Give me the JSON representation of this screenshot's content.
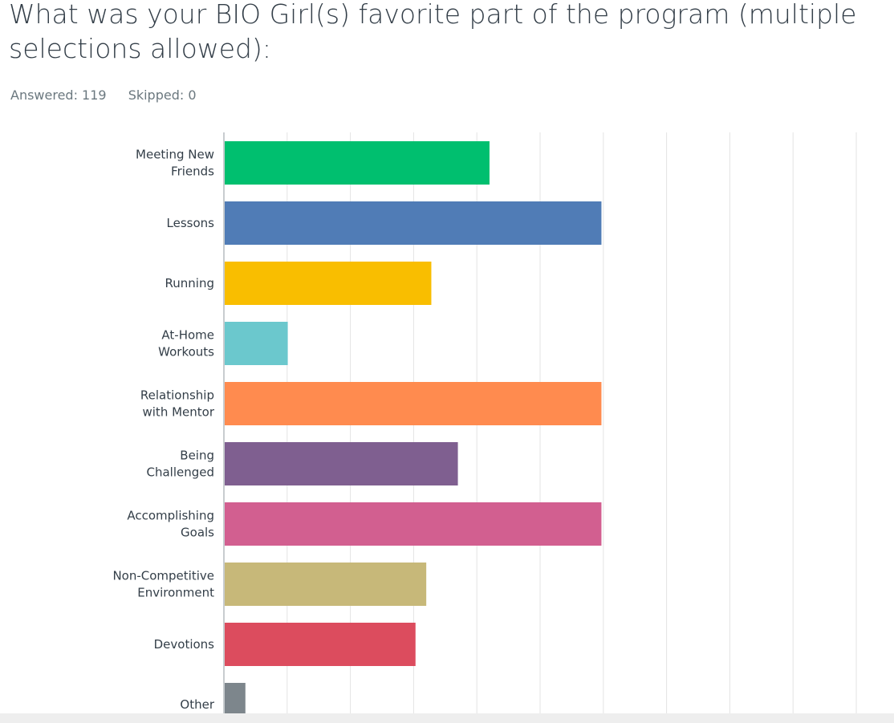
{
  "question": {
    "title": "What was your BIO Girl(s) favorite part of the program (multiple selections allowed):",
    "answered": "Answered: 119",
    "skipped": "Skipped: 0"
  },
  "chart_data": {
    "type": "bar",
    "orientation": "horizontal",
    "categories": [
      [
        "Meeting New",
        "Friends"
      ],
      [
        "Lessons"
      ],
      [
        "Running"
      ],
      [
        "At-Home",
        "Workouts"
      ],
      [
        "Relationship",
        "with Mentor"
      ],
      [
        "Being",
        "Challenged"
      ],
      [
        "Accomplishing",
        "Goals"
      ],
      [
        "Non-Competitive",
        "Environment"
      ],
      [
        "Devotions"
      ],
      [
        "Other"
      ]
    ],
    "values": [
      42,
      59.7,
      32.8,
      10.1,
      59.7,
      37,
      59.7,
      32,
      30.3,
      3.4
    ],
    "colors": [
      "#00bf6f",
      "#507cb6",
      "#f9be00",
      "#6bc8cd",
      "#ff8b4f",
      "#7f5f90",
      "#d25f90",
      "#c7b879",
      "#dc4c5e",
      "#7d868c"
    ],
    "xlim": [
      0,
      100
    ],
    "grid": true,
    "legend": false
  }
}
